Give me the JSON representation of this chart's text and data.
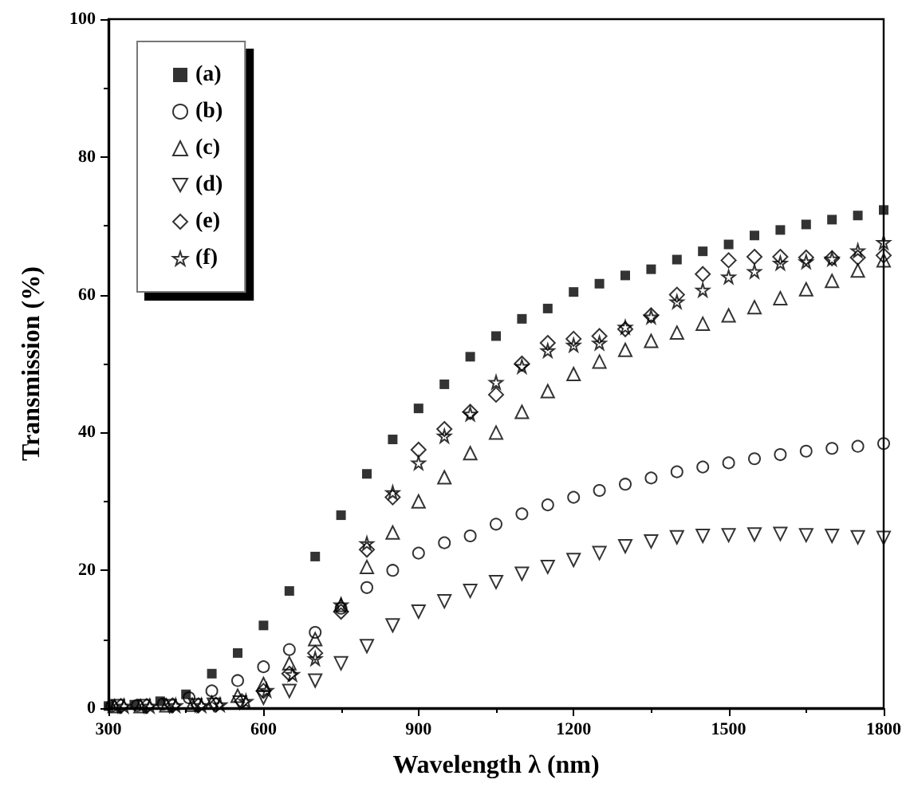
{
  "chart_data": {
    "type": "scatter",
    "xlabel": "Wavelength λ (nm)",
    "ylabel": "Transmission (%)",
    "x": [
      300,
      350,
      400,
      450,
      500,
      550,
      600,
      650,
      700,
      750,
      800,
      850,
      900,
      950,
      1000,
      1050,
      1100,
      1150,
      1200,
      1250,
      1300,
      1350,
      1400,
      1450,
      1500,
      1550,
      1600,
      1650,
      1700,
      1750,
      1800
    ],
    "series": [
      {
        "name": "(a)",
        "color": "#000000",
        "marker": "square",
        "values": [
          0.3,
          0.5,
          1,
          2,
          5,
          8,
          12,
          17,
          22,
          28,
          34,
          39,
          43.5,
          47,
          51,
          54,
          56.5,
          58,
          60.4,
          61.6,
          62.8,
          63.7,
          65.1,
          66.3,
          67.3,
          68.6,
          69.4,
          70.2,
          70.9,
          71.5,
          72.3
        ]
      },
      {
        "name": "(b)",
        "color": "#000000",
        "marker": "circle",
        "x": [
          306,
          356,
          406,
          456,
          500,
          550,
          600,
          650,
          700,
          750,
          800,
          850,
          900,
          950,
          1000,
          1050,
          1100,
          1150,
          1200,
          1250,
          1300,
          1350,
          1400,
          1450,
          1500,
          1550,
          1600,
          1650,
          1700,
          1750,
          1800
        ],
        "values": [
          0.3,
          0.4,
          0.6,
          1.5,
          2.5,
          4,
          6,
          8.5,
          11,
          14.5,
          17.5,
          20,
          22.5,
          24,
          25,
          26.7,
          28.2,
          29.5,
          30.6,
          31.6,
          32.5,
          33.4,
          34.3,
          35,
          35.6,
          36.2,
          36.8,
          37.3,
          37.7,
          38,
          38.4
        ]
      },
      {
        "name": "(c)",
        "color": "#000000",
        "marker": "triangle",
        "x": [
          312,
          362,
          412,
          462,
          500,
          550,
          600,
          650,
          700,
          750,
          800,
          850,
          900,
          950,
          1000,
          1050,
          1100,
          1150,
          1200,
          1250,
          1300,
          1350,
          1400,
          1450,
          1500,
          1550,
          1600,
          1650,
          1700,
          1750,
          1800
        ],
        "values": [
          0.3,
          0.3,
          0.4,
          0.5,
          0.8,
          1.8,
          3.5,
          6.5,
          10,
          15,
          20.5,
          25.5,
          30,
          33.5,
          37,
          40,
          43,
          46,
          48.5,
          50.3,
          52,
          53.3,
          54.5,
          55.8,
          57,
          58.2,
          59.5,
          60.8,
          62,
          63.5,
          65
        ]
      },
      {
        "name": "(d)",
        "color": "#000000",
        "marker": "triangle-down",
        "x": [
          318,
          368,
          418,
          468,
          504,
          554,
          600,
          650,
          700,
          750,
          800,
          850,
          900,
          950,
          1000,
          1050,
          1100,
          1150,
          1200,
          1250,
          1300,
          1350,
          1400,
          1450,
          1500,
          1550,
          1600,
          1650,
          1700,
          1750,
          1800
        ],
        "values": [
          0.3,
          0.3,
          0.3,
          0.4,
          0.5,
          0.8,
          1.5,
          2.5,
          4,
          6.5,
          9,
          12,
          14,
          15.5,
          17,
          18.3,
          19.5,
          20.5,
          21.5,
          22.5,
          23.5,
          24.2,
          24.8,
          25,
          25.1,
          25.2,
          25.3,
          25.1,
          25,
          24.8,
          24.7
        ]
      },
      {
        "name": "(e)",
        "color": "#000000",
        "marker": "diamond",
        "x": [
          324,
          374,
          424,
          474,
          508,
          558,
          600,
          650,
          700,
          750,
          800,
          850,
          900,
          950,
          1000,
          1050,
          1100,
          1150,
          1200,
          1250,
          1300,
          1350,
          1400,
          1450,
          1500,
          1550,
          1600,
          1650,
          1700,
          1750,
          1800
        ],
        "values": [
          0.3,
          0.3,
          0.4,
          0.4,
          0.5,
          1,
          2.5,
          5,
          8,
          14,
          23,
          30.6,
          37.5,
          40.5,
          43,
          45.5,
          50,
          53,
          53.6,
          54,
          55,
          57,
          60,
          63,
          65,
          65.5,
          65.5,
          65.4,
          65.3,
          65.4,
          65.7
        ]
      },
      {
        "name": "(f)",
        "color": "#000000",
        "marker": "star",
        "x": [
          330,
          380,
          430,
          480,
          516,
          566,
          606,
          656,
          700,
          750,
          800,
          850,
          900,
          950,
          1000,
          1050,
          1100,
          1150,
          1200,
          1250,
          1300,
          1350,
          1400,
          1450,
          1500,
          1550,
          1600,
          1650,
          1700,
          1750,
          1800
        ],
        "values": [
          0.3,
          0.3,
          0.4,
          0.4,
          0.5,
          1,
          2.6,
          4.9,
          7.2,
          15,
          23.9,
          31.3,
          35.6,
          39.5,
          42.7,
          47.3,
          49.6,
          51.9,
          52.7,
          53,
          55.3,
          56.8,
          59,
          60.7,
          62.6,
          63.4,
          64.6,
          64.8,
          65.2,
          66.4,
          67.6
        ]
      }
    ],
    "xlim": [
      300,
      1800
    ],
    "xticks": [
      300,
      600,
      900,
      1200,
      1500,
      1800
    ],
    "ylim": [
      0,
      100
    ],
    "yticks": [
      0,
      20,
      40,
      60,
      80,
      100
    ],
    "grid": false,
    "legend": "top left"
  }
}
